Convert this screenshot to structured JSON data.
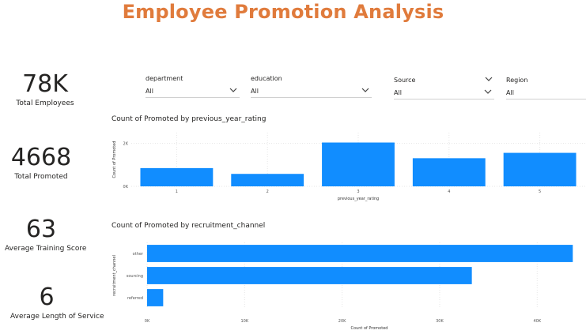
{
  "title": "Employee Promotion Analysis",
  "kpis": [
    {
      "value": "78K",
      "label": "Total Employees"
    },
    {
      "value": "4668",
      "label": "Total Promoted"
    },
    {
      "value": "63",
      "label": "Average Training Score"
    },
    {
      "value": "6",
      "label": "Average Length of Service"
    }
  ],
  "filters": [
    {
      "label": "department",
      "value": "All"
    },
    {
      "label": "education",
      "value": "All"
    },
    {
      "label": "Source",
      "value": "All"
    },
    {
      "label": "Region",
      "value": "All"
    }
  ],
  "colors": {
    "title": "#e07b3c",
    "bar": "#118dff",
    "grid": "#e6e6e6"
  },
  "chart_data": [
    {
      "type": "bar",
      "title": "Count of Promoted by previous_year_rating",
      "xlabel": "previous_year_rating",
      "ylabel": "Count of Promoted",
      "categories": [
        "1",
        "2",
        "3",
        "4",
        "5"
      ],
      "values": [
        850,
        580,
        2040,
        1310,
        1560
      ],
      "ylim": [
        0,
        2500
      ],
      "yticks": [
        0,
        2000
      ],
      "ytick_labels": [
        "0K",
        "2K"
      ],
      "grid": true
    },
    {
      "type": "bar",
      "orientation": "horizontal",
      "title": "Count of Promoted by recruitment_channel",
      "xlabel": "Count of Promoted",
      "ylabel": "recruitment_channel",
      "categories": [
        "other",
        "sourcing",
        "referred"
      ],
      "values": [
        43650,
        33300,
        1650
      ],
      "xlim": [
        0,
        44600
      ],
      "xticks": [
        0,
        10000,
        20000,
        30000,
        40000
      ],
      "xtick_labels": [
        "0K",
        "10K",
        "20K",
        "30K",
        "40K"
      ],
      "grid": true
    }
  ]
}
